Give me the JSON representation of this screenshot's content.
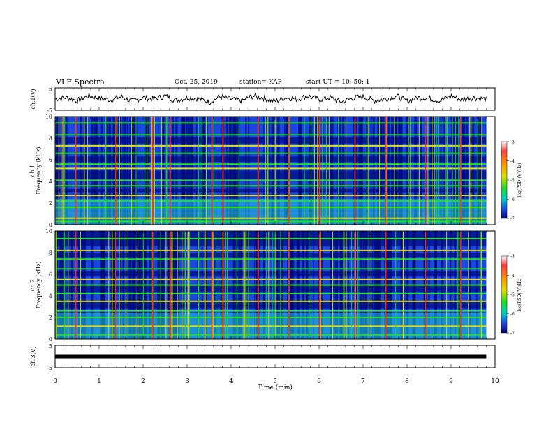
{
  "header": {
    "title": "VLF Spectra",
    "date": "Oct. 25, 2019",
    "station": "station= KAP",
    "start": "start  UT  =   10: 50: 1"
  },
  "chart_data": [
    {
      "type": "line",
      "panel": "ch1-waveform",
      "ylabel": "ch.1(V)",
      "ylim": [
        -5,
        5
      ],
      "yticks": [
        "5",
        "-5"
      ],
      "x": [
        0,
        0.25,
        0.5,
        0.75,
        1,
        1.25,
        1.5,
        1.75,
        2,
        2.25,
        2.5,
        2.75,
        3,
        3.25,
        3.5,
        3.75,
        4,
        4.25,
        4.5,
        4.75,
        5,
        5.25,
        5.5,
        5.75,
        6,
        6.25,
        6.5,
        6.75,
        7,
        7.25,
        7.5,
        7.75,
        8,
        8.25,
        8.5,
        8.75,
        9,
        9.25,
        9.5,
        9.75
      ],
      "values": [
        0,
        1,
        -1,
        2,
        0.5,
        -0.5,
        1.5,
        -1.5,
        1,
        0,
        2,
        -1,
        1,
        0.5,
        -2,
        1.5,
        0,
        -1,
        2,
        0.5,
        -1.5,
        1,
        0,
        2,
        -0.5,
        1,
        -2,
        0.5,
        1.5,
        -1,
        0,
        2,
        -1.5,
        1,
        0.5,
        -1,
        2,
        -0.5,
        1,
        0
      ]
    },
    {
      "type": "heatmap",
      "panel": "ch1-spectrogram",
      "ylabel": "ch.1 Frequency (kHz)",
      "ylim": [
        0,
        10
      ],
      "yticks": [
        "0",
        "2",
        "4",
        "6",
        "8",
        "10"
      ],
      "colorbar": {
        "label": "log(PSD)(V²/Hz)",
        "range": [
          -7,
          -3
        ],
        "ticks": [
          "-3",
          "-4",
          "-5",
          "-6",
          "-7"
        ]
      },
      "bright_bands_khz": [
        0.3,
        0.6,
        1.6,
        2.2,
        2.7,
        3.6,
        4.1,
        5.2,
        5.6,
        6.6,
        7.3,
        8.3,
        9.4
      ],
      "dark_bands_khz": [
        [
          3.0,
          3.3
        ],
        [
          4.2,
          5.0
        ],
        [
          5.8,
          6.3
        ],
        [
          7.5,
          8.1
        ]
      ],
      "spike_times_min": [
        0.45,
        1.35,
        2.2,
        2.6,
        3.55,
        3.8,
        4.6,
        5.3,
        6.0,
        6.8,
        7.5,
        8.4,
        9.2
      ]
    },
    {
      "type": "heatmap",
      "panel": "ch2-spectrogram",
      "ylabel": "ch.2 Frequency (kHz)",
      "ylim": [
        0,
        10
      ],
      "yticks": [
        "0",
        "2",
        "4",
        "6",
        "8",
        "10"
      ],
      "colorbar": {
        "label": "log(PSD)(V²/Hz)",
        "range": [
          -7,
          -3
        ],
        "ticks": [
          "-3",
          "-4",
          "-5",
          "-6",
          "-7"
        ]
      },
      "bright_bands_khz": [
        0.4,
        1.2,
        2.0,
        2.6,
        3.5,
        4.2,
        5.0,
        5.5,
        6.5,
        7.4,
        8.2,
        9.3
      ],
      "dark_bands_khz": [
        [
          2.8,
          3.4
        ],
        [
          4.4,
          4.9
        ],
        [
          5.8,
          6.3
        ],
        [
          7.6,
          8.0
        ],
        [
          8.6,
          9.9
        ]
      ],
      "spike_times_min": [
        0.45,
        1.35,
        2.2,
        2.6,
        3.55,
        3.8,
        4.6,
        5.3,
        6.0,
        6.8,
        7.5,
        8.4,
        9.2
      ]
    },
    {
      "type": "line",
      "panel": "ch3-waveform",
      "ylabel": "ch.3(V)",
      "ylim": [
        -5,
        5
      ],
      "yticks": [
        "5",
        "-5"
      ],
      "x": [
        0,
        9.8
      ],
      "values": [
        0,
        0
      ]
    }
  ],
  "xaxis": {
    "xlabel": "Time (min)",
    "xlim": [
      0,
      10
    ],
    "ticks": [
      "0",
      "1",
      "2",
      "3",
      "4",
      "5",
      "6",
      "7",
      "8",
      "9",
      "10"
    ]
  },
  "colors": {
    "heatmap_bg": "#1a46e8",
    "heatmap_dark": "#000a78",
    "band_green": "#22dd22",
    "band_yellow": "#dddd22",
    "spike_red": "#ee3322",
    "cyan": "#22cccc"
  }
}
